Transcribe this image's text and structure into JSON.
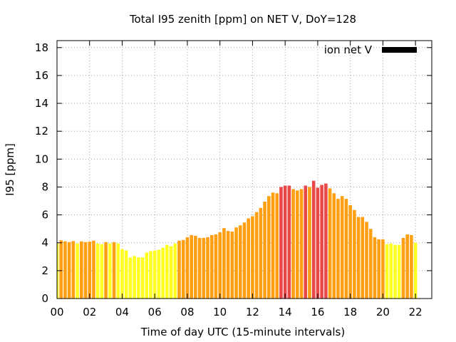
{
  "chart_data": {
    "type": "bar",
    "title": "Total I95 zenith [ppm] on NET V, DoY=128",
    "xlabel": "Time of day UTC (15-minute intervals)",
    "ylabel": "I95 [ppm]",
    "xlim": [
      0,
      23
    ],
    "ylim": [
      0,
      18.5
    ],
    "x_ticks": [
      "00",
      "02",
      "04",
      "06",
      "08",
      "10",
      "12",
      "14",
      "16",
      "18",
      "20",
      "22"
    ],
    "y_ticks": [
      "0",
      "2",
      "4",
      "6",
      "8",
      "10",
      "12",
      "14",
      "16",
      "18"
    ],
    "grid": true,
    "legend": {
      "position": "top-right",
      "label": "ion net V",
      "color": "#000000"
    },
    "colors": {
      "yellow": "#ffff22",
      "orange": "#ff9f11",
      "red": "#e84848"
    },
    "interval_hours": 0.25,
    "bar_width_fraction": 0.8,
    "series": [
      {
        "values": [
          3.95,
          4.18,
          4.1,
          4.05,
          4.12,
          3.95,
          4.1,
          4.05,
          4.08,
          4.15,
          3.95,
          3.9,
          4.05,
          3.95,
          4.05,
          3.95,
          3.55,
          3.45,
          2.95,
          3.05,
          2.95,
          2.95,
          3.3,
          3.4,
          3.45,
          3.5,
          3.65,
          3.85,
          3.75,
          3.95,
          4.15,
          4.2,
          4.4,
          4.55,
          4.5,
          4.35,
          4.35,
          4.4,
          4.55,
          4.6,
          4.75,
          5.05,
          4.85,
          4.8,
          5.1,
          5.25,
          5.45,
          5.75,
          5.9,
          6.2,
          6.5,
          6.95,
          7.35,
          7.6,
          7.55,
          8.0,
          8.1,
          8.1,
          7.85,
          7.75,
          7.85,
          8.1,
          8.0,
          8.45,
          7.95,
          8.15,
          8.25,
          7.9,
          7.55,
          7.15,
          7.35,
          7.15,
          6.7,
          6.35,
          5.85,
          5.85,
          5.5,
          5.0,
          4.4,
          4.25,
          4.25,
          3.9,
          3.95,
          3.85,
          3.85,
          4.35,
          4.6,
          4.55,
          4.0
        ],
        "colors": [
          "yellow",
          "orange",
          "orange",
          "orange",
          "orange",
          "yellow",
          "orange",
          "orange",
          "orange",
          "orange",
          "yellow",
          "yellow",
          "orange",
          "yellow",
          "orange",
          "yellow",
          "yellow",
          "yellow",
          "yellow",
          "yellow",
          "yellow",
          "yellow",
          "yellow",
          "yellow",
          "yellow",
          "yellow",
          "yellow",
          "yellow",
          "yellow",
          "yellow",
          "orange",
          "orange",
          "orange",
          "orange",
          "orange",
          "orange",
          "orange",
          "orange",
          "orange",
          "orange",
          "orange",
          "orange",
          "orange",
          "orange",
          "orange",
          "orange",
          "orange",
          "orange",
          "orange",
          "orange",
          "orange",
          "orange",
          "orange",
          "orange",
          "orange",
          "red",
          "red",
          "red",
          "orange",
          "orange",
          "orange",
          "red",
          "orange",
          "red",
          "red",
          "red",
          "red",
          "orange",
          "orange",
          "orange",
          "orange",
          "orange",
          "orange",
          "orange",
          "orange",
          "orange",
          "orange",
          "orange",
          "orange",
          "orange",
          "orange",
          "yellow",
          "yellow",
          "yellow",
          "yellow",
          "orange",
          "orange",
          "orange",
          "yellow"
        ]
      }
    ]
  }
}
